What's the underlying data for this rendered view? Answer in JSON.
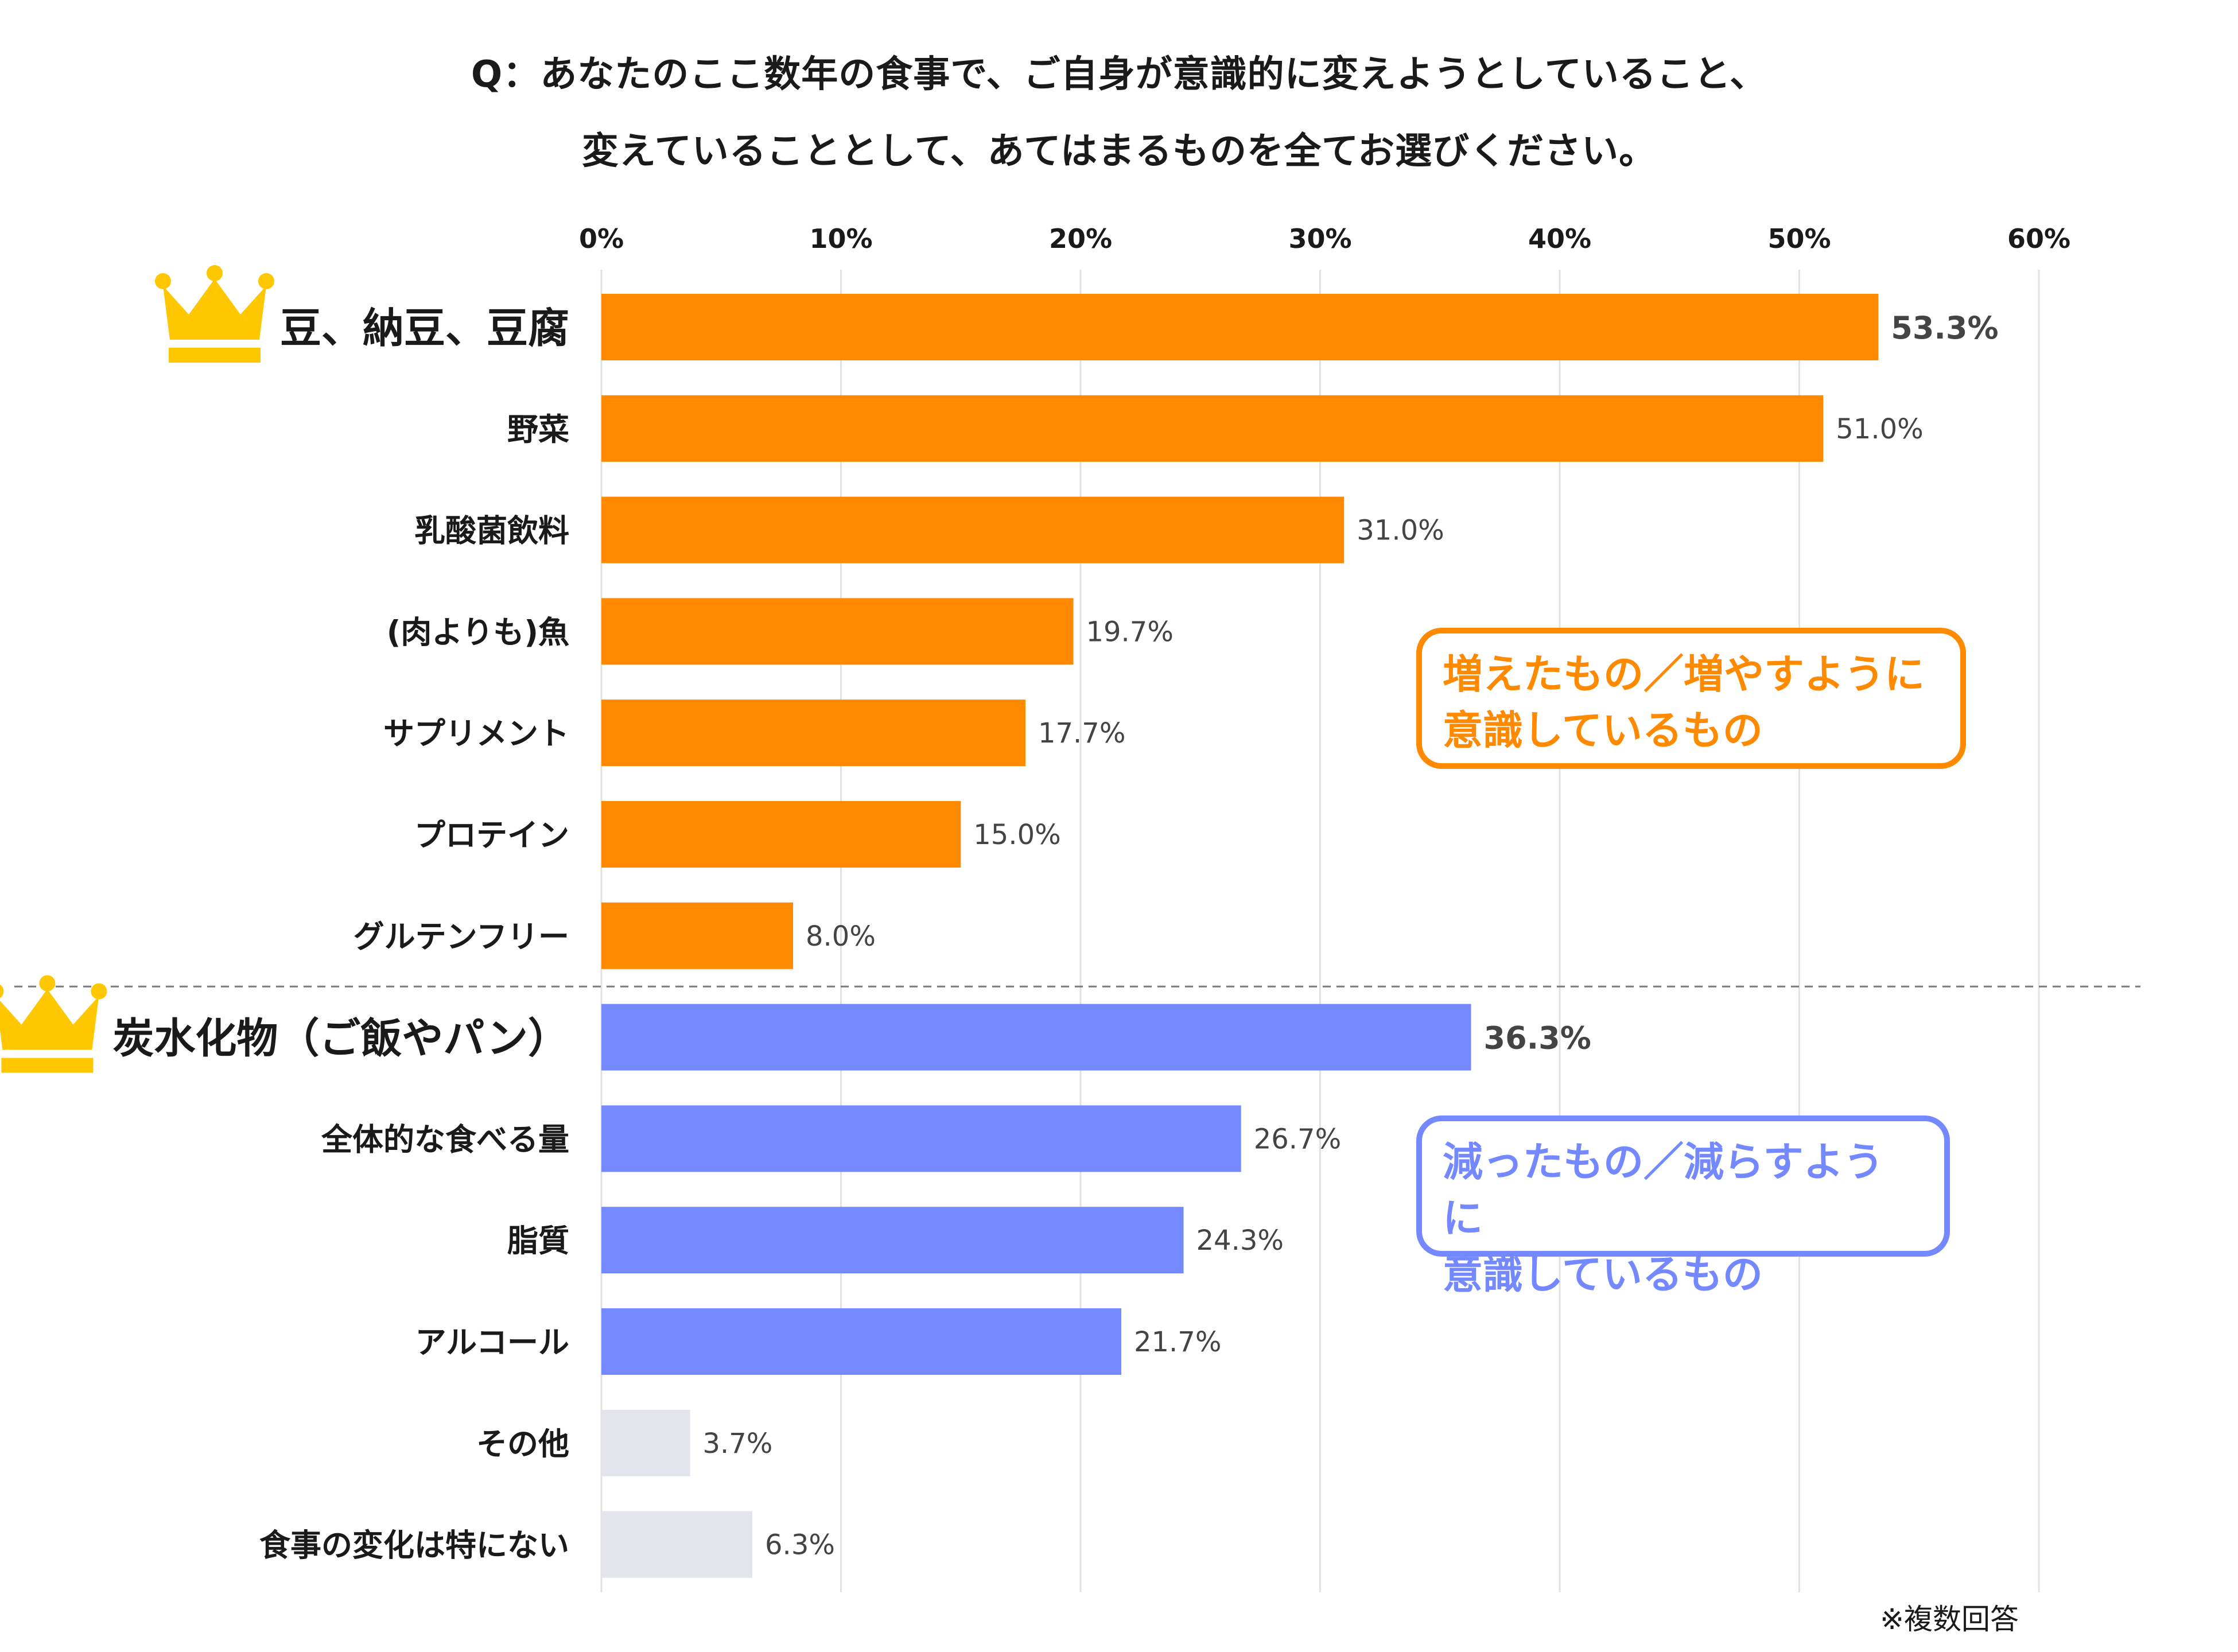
{
  "title_lines": [
    "Q：あなたのここ数年の食事で、ご自身が意識的に変えようとしていること、",
    "変えていることとして、あてはまるものを全てお選びください。"
  ],
  "note": "※複数回答",
  "callouts": {
    "increase": "増えたもの／増やすように\n意識しているもの",
    "decrease": "減ったもの／減らすように\n意識しているもの"
  },
  "colors": {
    "increase": "#FF8A00",
    "decrease": "#7489FF",
    "other": "#E3E4EC",
    "crown": "#FFC700",
    "grid": "#E2E2E2",
    "divider": "#7A7A7A",
    "value_text": "#444444"
  },
  "icons": {
    "top_increase": "crown-icon",
    "top_decrease": "crown-icon"
  },
  "chart_data": {
    "type": "bar",
    "orientation": "horizontal",
    "xlim": [
      0,
      60
    ],
    "x_ticks": [
      "0%",
      "10%",
      "20%",
      "30%",
      "40%",
      "50%",
      "60%"
    ],
    "grid": true,
    "categories": [
      "豆、納豆、豆腐",
      "野菜",
      "乳酸菌飲料",
      "(肉よりも)魚",
      "サプリメント",
      "プロテイン",
      "グルテンフリー",
      "炭水化物（ご飯やパン）",
      "全体的な食べる量",
      "脂質",
      "アルコール",
      "その他",
      "食事の変化は特にない"
    ],
    "values": [
      53.3,
      51.0,
      31.0,
      19.7,
      17.7,
      15.0,
      8.0,
      36.3,
      26.7,
      24.3,
      21.7,
      3.7,
      6.3
    ],
    "value_labels": [
      "53.3%",
      "51.0%",
      "31.0%",
      "19.7%",
      "17.7%",
      "15.0%",
      "8.0%",
      "36.3%",
      "26.7%",
      "24.3%",
      "21.7%",
      "3.7%",
      "6.3%"
    ],
    "groups": [
      "increase",
      "increase",
      "increase",
      "increase",
      "increase",
      "increase",
      "increase",
      "decrease",
      "decrease",
      "decrease",
      "decrease",
      "other",
      "other"
    ],
    "highlighted": [
      0,
      7
    ]
  }
}
